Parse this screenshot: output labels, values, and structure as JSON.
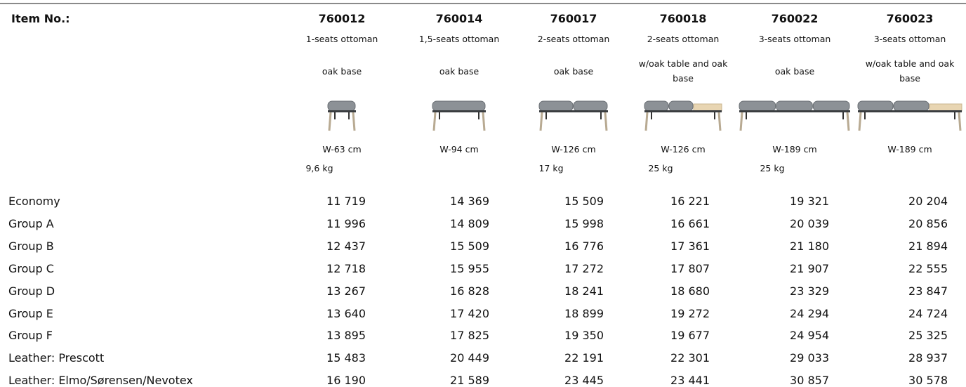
{
  "header": {
    "label": "Item No.:"
  },
  "products": [
    {
      "item": "760012",
      "description": "1-seats ottoman",
      "base": "oak base",
      "width": "W-63 cm",
      "weight": "9,6 kg"
    },
    {
      "item": "760014",
      "description": "1,5-seats ottoman",
      "base": "oak base",
      "width": "W-94 cm",
      "weight": null
    },
    {
      "item": "760017",
      "description": "2-seats ottoman",
      "base": "oak base",
      "width": "W-126 cm",
      "weight": "17 kg"
    },
    {
      "item": "760018",
      "description": "2-seats ottoman",
      "base": "w/oak table and oak base",
      "width": "W-126 cm",
      "weight": "25 kg"
    },
    {
      "item": "760022",
      "description": "3-seats ottoman",
      "base": "oak base",
      "width": "W-189 cm",
      "weight": "25 kg"
    },
    {
      "item": "760023",
      "description": "3-seats ottoman",
      "base": "w/oak table and oak base",
      "width": "W-189 cm",
      "weight": null
    }
  ],
  "rows": [
    {
      "label": "Economy",
      "prices": [
        "11 719",
        "14 369",
        "15 509",
        "16 221",
        "19 321",
        "20 204"
      ]
    },
    {
      "label": "Group A",
      "prices": [
        "11 996",
        "14 809",
        "15 998",
        "16 661",
        "20 039",
        "20 856"
      ]
    },
    {
      "label": "Group B",
      "prices": [
        "12 437",
        "15 509",
        "16 776",
        "17 361",
        "21 180",
        "21 894"
      ]
    },
    {
      "label": "Group C",
      "prices": [
        "12 718",
        "15 955",
        "17 272",
        "17 807",
        "21 907",
        "22 555"
      ]
    },
    {
      "label": "Group D",
      "prices": [
        "13 267",
        "16 828",
        "18 241",
        "18 680",
        "23 329",
        "23 847"
      ]
    },
    {
      "label": "Group E",
      "prices": [
        "13 640",
        "17 420",
        "18 899",
        "19 272",
        "24 294",
        "24 724"
      ]
    },
    {
      "label": "Group F",
      "prices": [
        "13 895",
        "17 825",
        "19 350",
        "19 677",
        "24 954",
        "25 325"
      ]
    },
    {
      "label": "Leather: Prescott",
      "prices": [
        "15 483",
        "20 449",
        "22 191",
        "22 301",
        "29 033",
        "28 937"
      ]
    },
    {
      "label": "Leather: Elmo/Sørensen/Nevotex",
      "prices": [
        "16 190",
        "21 589",
        "23 445",
        "23 441",
        "30 857",
        "30 578"
      ]
    }
  ]
}
